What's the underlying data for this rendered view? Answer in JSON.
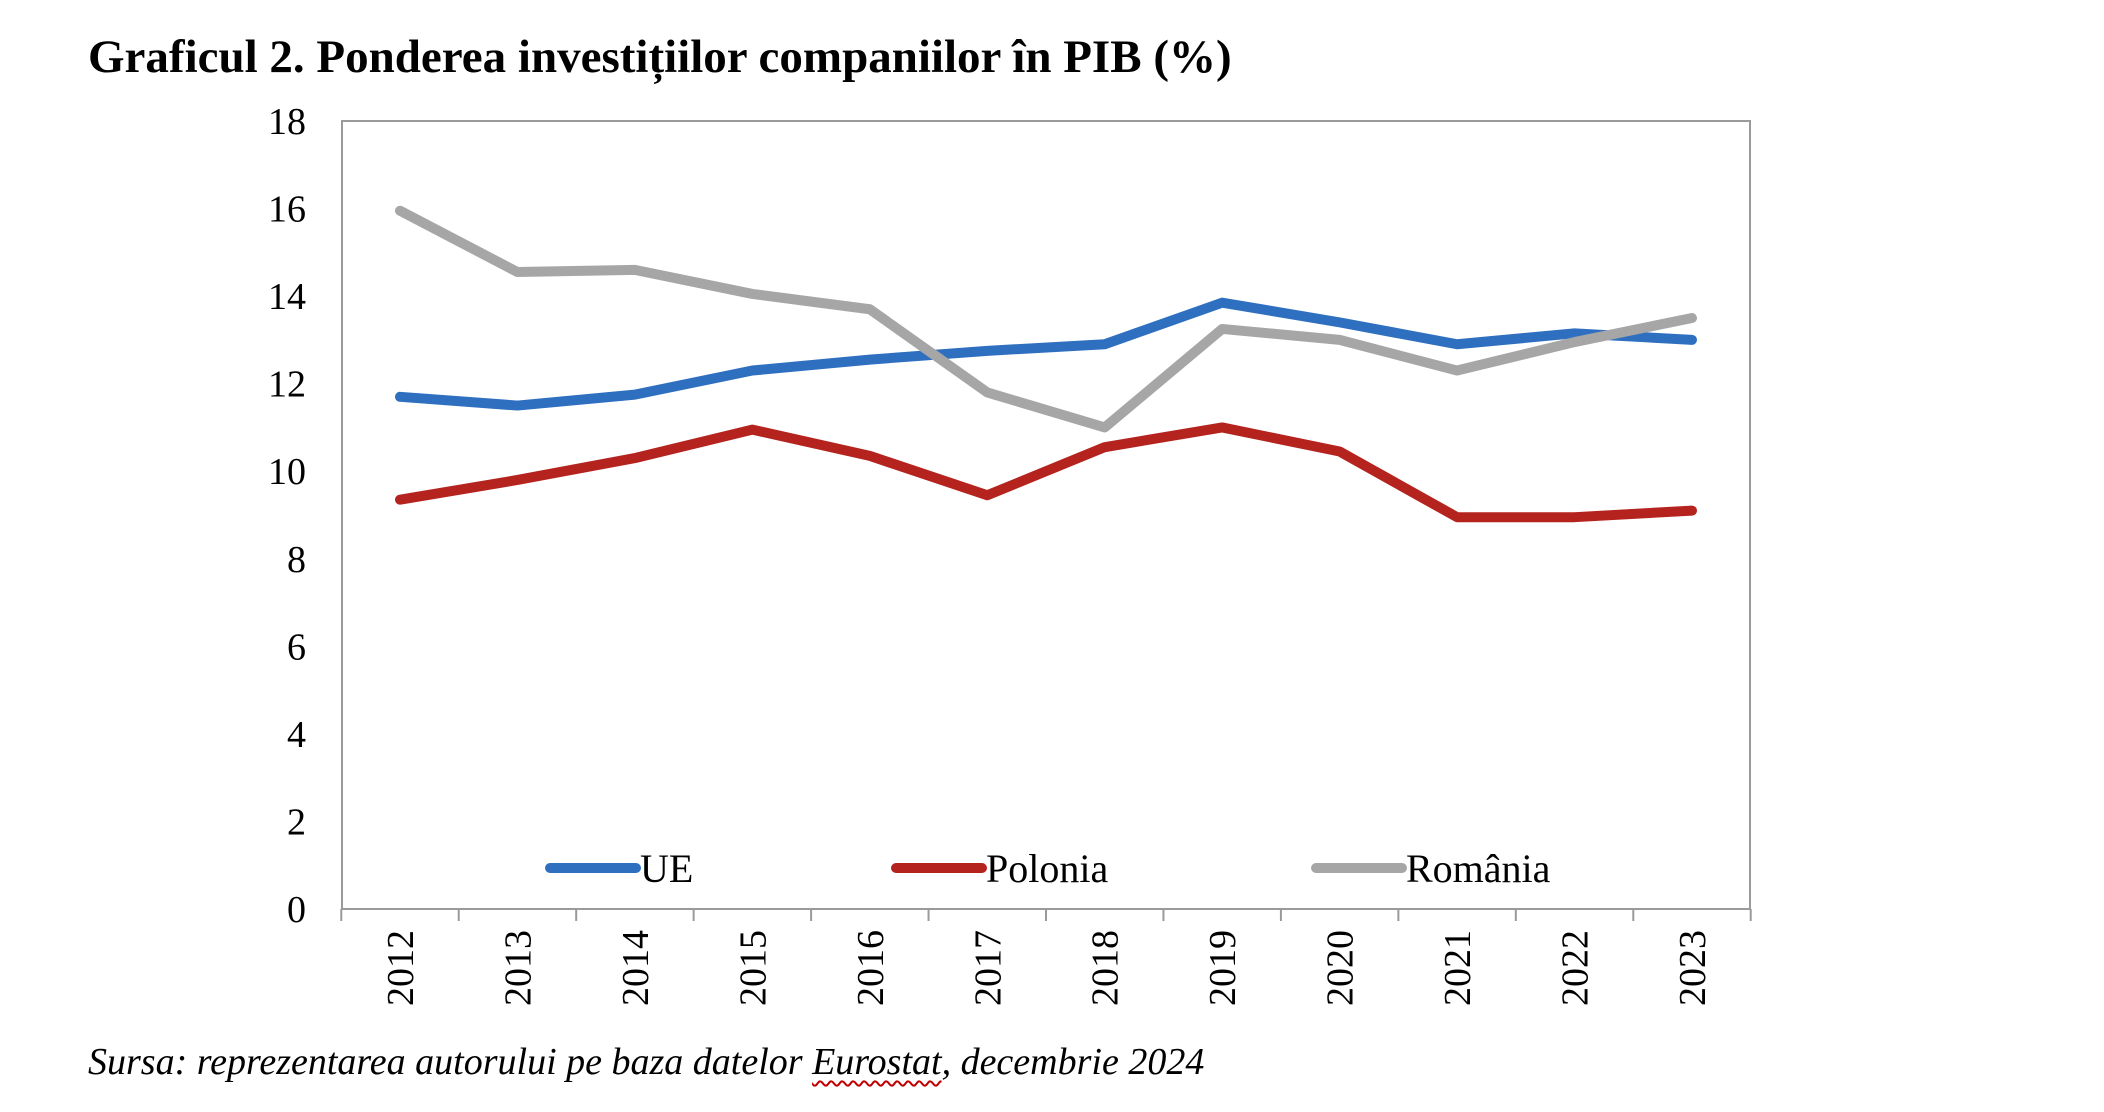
{
  "title": "Graficul 2. Ponderea investițiilor companiilor în PIB (%)",
  "source": {
    "prefix": "Sursa: reprezentarea autorului pe baza datelor ",
    "underlined": "Eurostat",
    "suffix": ", decembrie 2024"
  },
  "chart_data": {
    "type": "line",
    "title": "Graficul 2. Ponderea investițiilor companiilor în PIB (%)",
    "categories": [
      "2012",
      "2013",
      "2014",
      "2015",
      "2016",
      "2017",
      "2018",
      "2019",
      "2020",
      "2021",
      "2022",
      "2023"
    ],
    "ylim": [
      0,
      18
    ],
    "yticks": [
      0,
      2,
      4,
      6,
      8,
      10,
      12,
      14,
      16,
      18
    ],
    "grid": false,
    "legend": "inside-bottom",
    "series": [
      {
        "name": "UE",
        "color": "#2e6fc0",
        "values": [
          11.7,
          11.5,
          11.75,
          12.3,
          12.55,
          12.75,
          12.9,
          13.85,
          13.4,
          12.9,
          13.15,
          13.0
        ]
      },
      {
        "name": "Polonia",
        "color": "#b5231e",
        "values": [
          9.35,
          9.8,
          10.3,
          10.95,
          10.35,
          9.45,
          10.55,
          11.0,
          10.45,
          8.95,
          8.95,
          9.1
        ]
      },
      {
        "name": "România",
        "color": "#a6a6a6",
        "values": [
          15.95,
          14.55,
          14.6,
          14.05,
          13.7,
          11.8,
          11.0,
          13.25,
          13.0,
          12.3,
          12.95,
          13.5
        ]
      }
    ]
  }
}
